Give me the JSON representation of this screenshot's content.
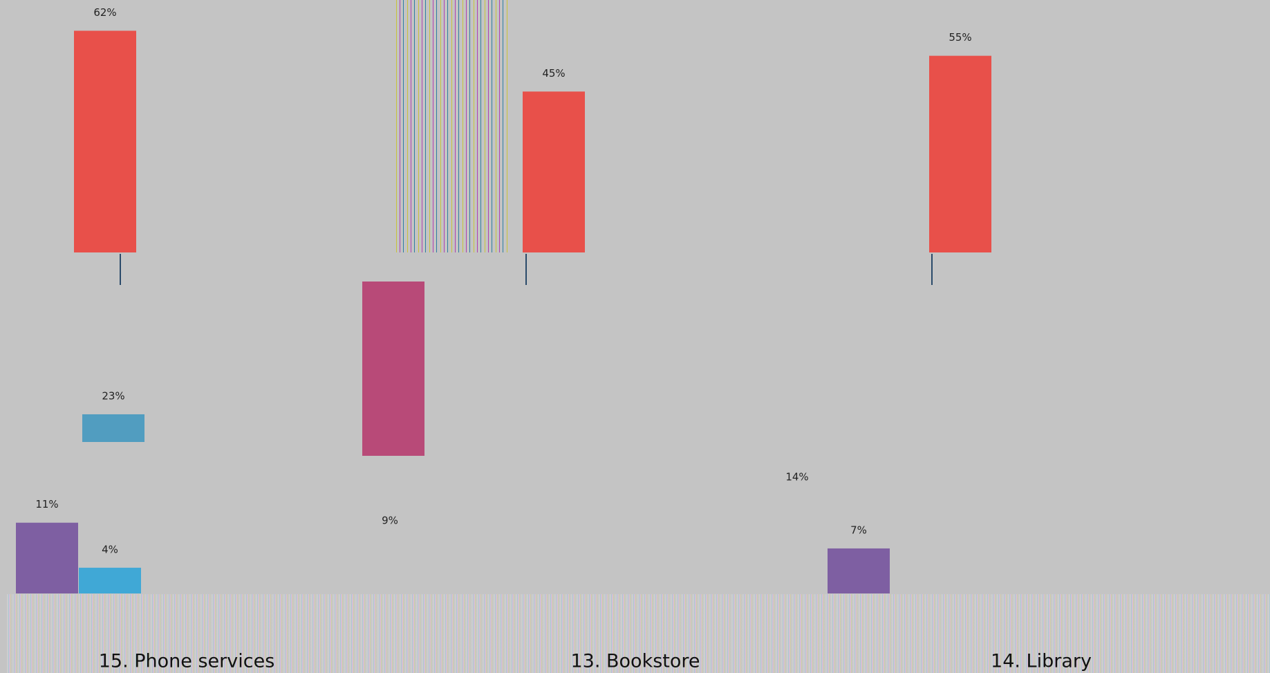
{
  "chart_data": [
    {
      "type": "bar",
      "values": [
        62,
        45,
        55
      ],
      "value_labels": [
        "62%",
        "45%",
        "55%"
      ],
      "color": "#e8504a"
    },
    {
      "type": "bar",
      "values": [
        23
      ],
      "value_labels": [
        "23%"
      ],
      "color": "#519dc0",
      "annotations": [
        "14%"
      ]
    },
    {
      "type": "bar",
      "values": [
        11,
        4,
        7
      ],
      "value_labels": [
        "11%",
        "4%",
        "7%"
      ],
      "colors": [
        "#7e5fa2",
        "#40a8d6",
        "#7e5fa2"
      ],
      "annotations": [
        "9%"
      ]
    }
  ],
  "footer": {
    "labels": [
      "15. Phone services",
      "13. Bookstore",
      "14. Library"
    ]
  }
}
